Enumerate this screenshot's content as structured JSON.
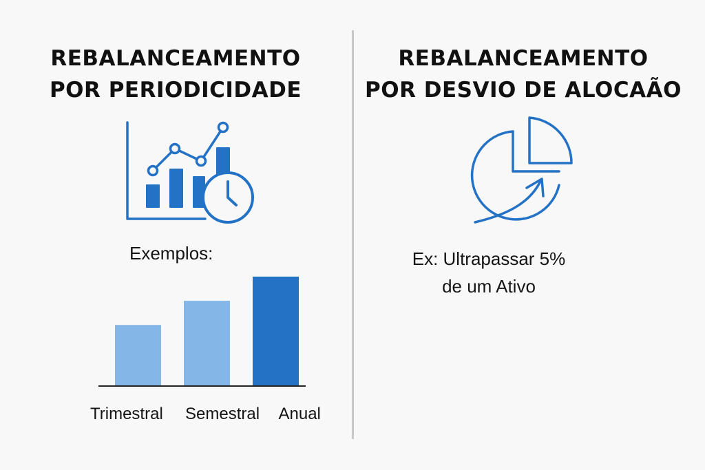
{
  "left_panel": {
    "title_line1": "REBALANCEAMENTO",
    "title_line2": "POR PERIODICIDADE",
    "icon": "growth-chart-with-clock-icon",
    "examples_label": "Exemplos:"
  },
  "right_panel": {
    "title_line1": "REBALANCEAMENTO",
    "title_line2": "POR DESVIO DE ALOCAÃO",
    "icon": "pie-chart-arrow-icon",
    "text_line1": "Ex: Ultrapassar 5%",
    "text_line2": "de um Ativo"
  },
  "colors": {
    "accent": "#2372c6",
    "light_blue": "#85b6e8",
    "divider": "#c8c8c8"
  },
  "chart_data": {
    "type": "bar",
    "categories": [
      "Trimestral",
      "Semestral",
      "Anual"
    ],
    "values": [
      1,
      1.4,
      1.8
    ],
    "colors": [
      "#85b6e8",
      "#85b6e8",
      "#2372c6"
    ],
    "title": "",
    "xlabel": "",
    "ylabel": "",
    "ylim": [
      0,
      1.8
    ]
  }
}
